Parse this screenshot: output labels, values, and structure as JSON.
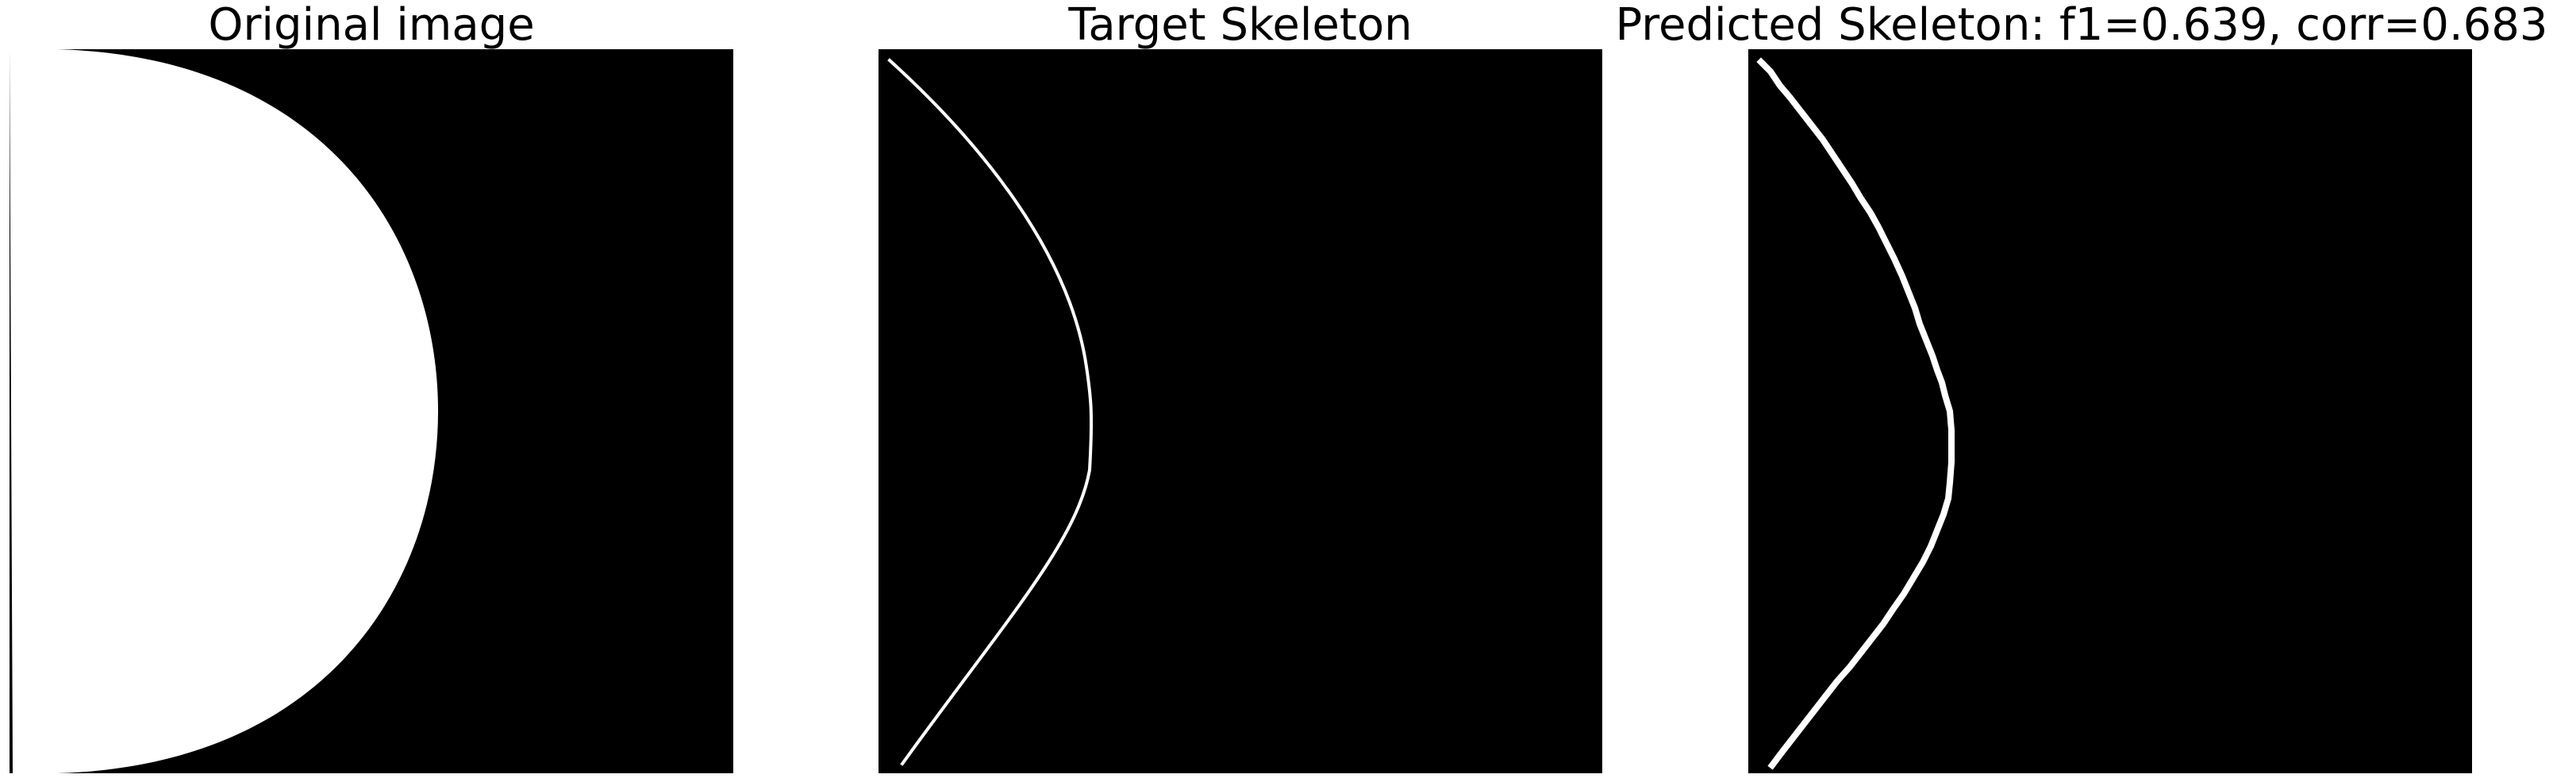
{
  "panels": [
    {
      "title": "Original image"
    },
    {
      "title": "Target Skeleton"
    },
    {
      "title": "Predicted Skeleton: f1=0.639, corr=0.683"
    }
  ],
  "colors": {
    "background": "#000000",
    "foreground": "#ffffff",
    "page": "#ffffff"
  }
}
